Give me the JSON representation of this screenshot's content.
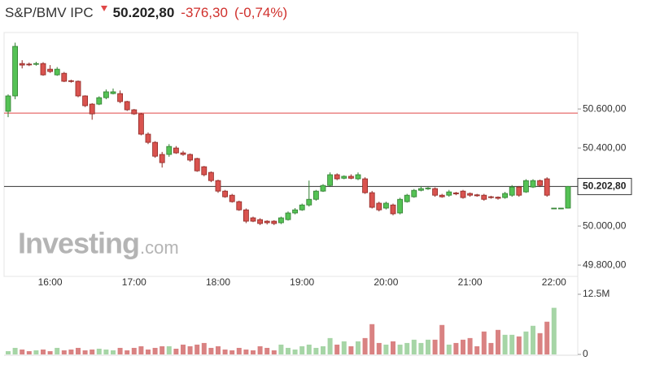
{
  "chart_data": {
    "type": "candlestick",
    "title": "S&P/BMV IPC",
    "price": "50.202,80",
    "change": "-376,30",
    "change_percent": "(-0,74%)",
    "watermark": [
      "Investing",
      ".com"
    ],
    "categories": [
      null,
      null,
      null,
      null,
      null,
      null,
      "16:00",
      null,
      null,
      null,
      null,
      null,
      null,
      null,
      null,
      null,
      null,
      null,
      "17:00",
      null,
      null,
      null,
      null,
      null,
      null,
      null,
      null,
      null,
      null,
      null,
      "18:00",
      null,
      null,
      null,
      null,
      null,
      null,
      null,
      null,
      null,
      null,
      null,
      "19:00",
      null,
      null,
      null,
      null,
      null,
      null,
      null,
      null,
      null,
      null,
      null,
      "20:00",
      null,
      null,
      null,
      null,
      null,
      null,
      null,
      null,
      null,
      null,
      null,
      "21:00",
      null,
      null,
      null,
      null,
      null,
      null,
      null,
      null,
      null,
      null,
      null,
      "22:00",
      null,
      null
    ],
    "open": [
      50588,
      50667,
      50833,
      50830,
      50830,
      50833,
      50804,
      50775,
      50783,
      50745,
      50742,
      50667,
      50625,
      50625,
      50658,
      50679,
      50679,
      50638,
      50596,
      50575,
      50471,
      50429,
      50367,
      50367,
      50400,
      50375,
      50367,
      50346,
      50304,
      50275,
      50233,
      50179,
      50158,
      50125,
      50083,
      50042,
      50033,
      50025,
      50025,
      50017,
      50033,
      50067,
      50083,
      50108,
      50137,
      50179,
      50208,
      50263,
      50245,
      50255,
      50242,
      50242,
      50171,
      50117,
      50092,
      50108,
      50067,
      50125,
      50150,
      50183,
      50192,
      50192,
      50158,
      50158,
      50170,
      50179,
      50167,
      50160,
      50158,
      50150,
      50148,
      50146,
      50158,
      50200,
      50175,
      50200,
      50233,
      50242,
      50092,
      50092,
      50092
    ],
    "high": [
      50675,
      50940,
      50850,
      50838,
      50842,
      50840,
      50825,
      50815,
      50790,
      50750,
      50746,
      50670,
      50630,
      50665,
      50700,
      50705,
      50695,
      50642,
      50600,
      50580,
      50480,
      50435,
      50380,
      50420,
      50410,
      50385,
      50372,
      50350,
      50308,
      50280,
      50238,
      50185,
      50165,
      50130,
      50090,
      50048,
      50040,
      50030,
      50030,
      50048,
      50075,
      50092,
      50115,
      50233,
      50185,
      50215,
      50275,
      50270,
      50260,
      50265,
      50275,
      50250,
      50180,
      50125,
      50125,
      50115,
      50145,
      50165,
      50190,
      50205,
      50200,
      50198,
      50165,
      50185,
      50175,
      50185,
      50172,
      50165,
      50165,
      50155,
      50152,
      50175,
      50210,
      50205,
      50240,
      50240,
      50238,
      50250,
      50092,
      50092,
      50205
    ],
    "low": [
      50558,
      50650,
      50808,
      50820,
      50822,
      50770,
      50785,
      50770,
      50738,
      50735,
      50660,
      50610,
      50545,
      50620,
      50650,
      50675,
      50630,
      50590,
      50570,
      50465,
      50420,
      50350,
      50300,
      50355,
      50370,
      50360,
      50330,
      50278,
      50255,
      50225,
      50170,
      50145,
      50120,
      50078,
      50015,
      50020,
      50005,
      50008,
      50005,
      50010,
      50028,
      50060,
      50078,
      50100,
      50130,
      50175,
      50200,
      50235,
      50240,
      50240,
      50235,
      50165,
      50090,
      50075,
      50085,
      50055,
      50060,
      50120,
      50145,
      50178,
      50185,
      50150,
      50145,
      50150,
      50158,
      50140,
      50150,
      50150,
      50130,
      50140,
      50135,
      50140,
      50150,
      50150,
      50170,
      50195,
      50200,
      50150,
      50092,
      50092,
      50090
    ],
    "close": [
      50667,
      50921,
      50825,
      50828,
      50833,
      50775,
      50792,
      50804,
      50742,
      50742,
      50667,
      50617,
      50575,
      50658,
      50688,
      50688,
      50638,
      50596,
      50575,
      50471,
      50429,
      50358,
      50325,
      50408,
      50375,
      50367,
      50338,
      50283,
      50263,
      50233,
      50179,
      50150,
      50125,
      50083,
      50025,
      50025,
      50013,
      50017,
      50013,
      50042,
      50067,
      50083,
      50108,
      50137,
      50179,
      50208,
      50263,
      50242,
      50255,
      50245,
      50263,
      50171,
      50096,
      50083,
      50117,
      50063,
      50137,
      50158,
      50183,
      50192,
      50195,
      50158,
      50150,
      50175,
      50165,
      50146,
      50158,
      50155,
      50137,
      50148,
      50142,
      50167,
      50200,
      50158,
      50233,
      50233,
      50208,
      50158,
      50092,
      50092,
      50202.8
    ],
    "volume": [
      680000,
      1360000,
      1020000,
      680000,
      850000,
      1020000,
      680000,
      1360000,
      850000,
      1020000,
      1360000,
      850000,
      1020000,
      1190000,
      1020000,
      850000,
      1360000,
      850000,
      1360000,
      1700000,
      1020000,
      1360000,
      1700000,
      1700000,
      1190000,
      2040000,
      1700000,
      2040000,
      2380000,
      1360000,
      1700000,
      1020000,
      850000,
      1360000,
      1020000,
      850000,
      1700000,
      1360000,
      850000,
      2040000,
      1360000,
      1020000,
      1700000,
      2040000,
      1360000,
      1700000,
      3400000,
      2040000,
      2720000,
      1700000,
      2720000,
      3400000,
      6290000,
      2380000,
      2040000,
      2720000,
      2040000,
      2380000,
      3060000,
      2380000,
      3060000,
      3060000,
      6120000,
      2040000,
      2380000,
      3060000,
      3400000,
      1700000,
      4760000,
      2380000,
      5100000,
      4080000,
      4080000,
      3740000,
      4760000,
      5950000,
      4420000,
      6800000,
      9690000,
      0,
      0
    ],
    "ylim": [
      49742,
      50992
    ],
    "yticks": [
      {
        "value": 50600,
        "label": "50.600,00"
      },
      {
        "value": 50400,
        "label": "50.400,00"
      },
      {
        "value": 50000,
        "label": "50.000,00"
      },
      {
        "value": 49800,
        "label": "49.800,00"
      }
    ],
    "previous_close": 50579.1,
    "previous_close_color": "#e04848",
    "volume_lim": [
      0,
      12500000
    ],
    "volume_ticks": [
      {
        "value": 12500000,
        "label": "12.5M"
      },
      0
    ],
    "up_color": "#55c255",
    "down_color": "#d9534f",
    "volume_up_color": "#a6d5a6",
    "volume_down_color": "#d98282"
  }
}
